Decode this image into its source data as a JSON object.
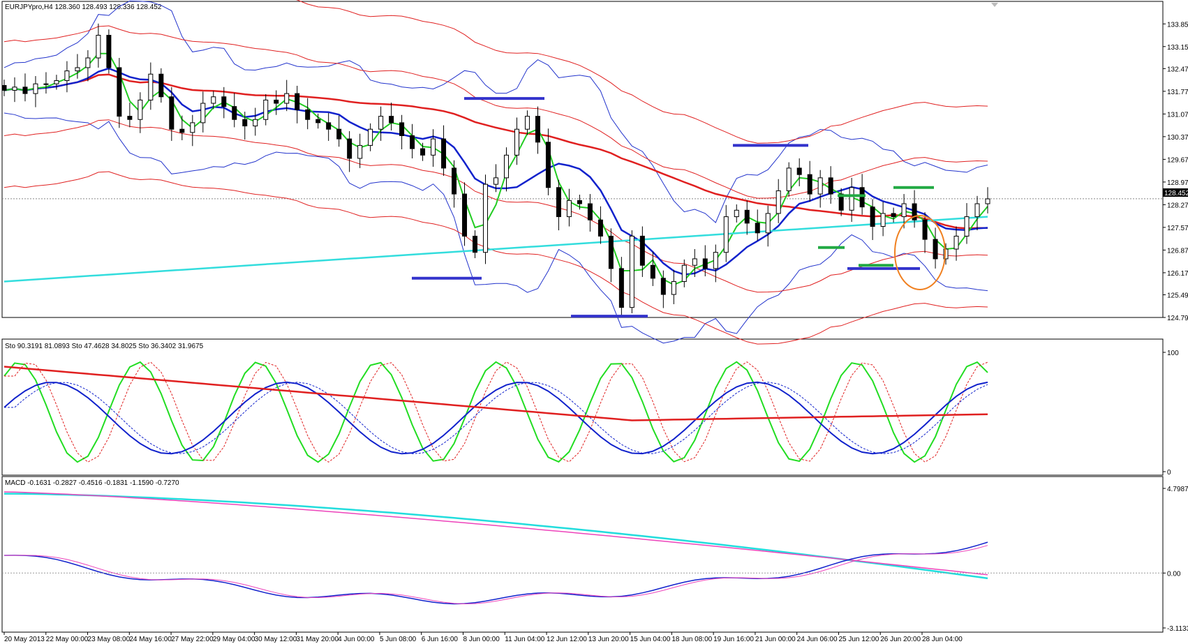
{
  "window_title": "",
  "chart_data": [
    {
      "type": "candlestick",
      "header": "EURJPYpro,H4  128.360 128.493 128.336 128.452",
      "symbol": "EURJPYpro",
      "timeframe": "H4",
      "ohlc_last": {
        "open": 128.36,
        "high": 128.493,
        "low": 128.336,
        "close": 128.452
      },
      "current_price_label": "128.452",
      "ylim": [
        124.79,
        134.2
      ],
      "y_ticks": [
        "133.850",
        "133.150",
        "132.470",
        "131.770",
        "131.070",
        "130.370",
        "129.670",
        "128.970",
        "128.270",
        "127.570",
        "126.870",
        "126.170",
        "125.490",
        "124.790"
      ],
      "y_tick_values": [
        133.85,
        133.15,
        132.47,
        131.77,
        131.07,
        130.37,
        129.67,
        128.97,
        128.27,
        127.57,
        126.87,
        126.17,
        125.49,
        124.79
      ],
      "candles_close": [
        131.8,
        131.9,
        131.7,
        132.0,
        132.0,
        132.1,
        132.4,
        132.5,
        132.8,
        133.5,
        132.5,
        131.0,
        130.9,
        131.5,
        132.3,
        131.6,
        130.6,
        130.5,
        130.8,
        131.4,
        131.6,
        131.3,
        130.9,
        130.7,
        130.9,
        131.5,
        131.4,
        131.7,
        131.2,
        130.9,
        130.8,
        130.6,
        130.3,
        129.7,
        130.1,
        130.6,
        131.0,
        130.8,
        130.4,
        130.0,
        129.8,
        130.3,
        129.4,
        128.6,
        127.3,
        126.8,
        128.9,
        129.1,
        129.8,
        130.6,
        131.0,
        130.2,
        128.8,
        127.9,
        128.4,
        128.3,
        127.8,
        127.3,
        126.3,
        125.1,
        127.3,
        126.4,
        126.0,
        125.5,
        125.9,
        126.4,
        126.6,
        126.3,
        126.8,
        127.9,
        128.1,
        127.7,
        127.4,
        128.0,
        128.7,
        129.4,
        129.2,
        128.6,
        129.1,
        128.6,
        128.1,
        128.8,
        128.2,
        127.6,
        128.0,
        127.9,
        128.3,
        127.8,
        127.2,
        126.6,
        126.9,
        127.3,
        127.9,
        128.3,
        128.45
      ],
      "annotations": [
        {
          "kind": "support-resistance",
          "color": "#3333cc",
          "price": 131.55
        },
        {
          "kind": "support-resistance",
          "color": "#3333cc",
          "price": 126.0
        },
        {
          "kind": "support-resistance",
          "color": "#3333cc",
          "price": 124.83
        },
        {
          "kind": "support-resistance",
          "color": "#3333cc",
          "price": 130.1
        },
        {
          "kind": "support-resistance",
          "color": "#3333cc",
          "price": 126.3
        },
        {
          "kind": "support-resistance",
          "color": "#22aa44",
          "price": 128.55
        },
        {
          "kind": "support-resistance",
          "color": "#22aa44",
          "price": 126.95
        },
        {
          "kind": "support-resistance",
          "color": "#22aa44",
          "price": 126.4
        },
        {
          "kind": "support-resistance",
          "color": "#22aa44",
          "price": 128.8
        },
        {
          "kind": "highlight-ellipse",
          "color": "#f08020"
        }
      ],
      "colors": {
        "bollinger_outer": "#e02020",
        "bollinger_inner": "#2233cc",
        "ma_long": "#e02020",
        "ma_mid": "#1122cc",
        "ma_fast": "#22cc22",
        "ma_trend": "#33dddd"
      }
    },
    {
      "type": "line",
      "header": "Sto 90.3191 81.0893  Sto 47.4628 34.8025  Sto 36.3402 31.9675",
      "ylim": [
        0,
        100
      ],
      "y_ticks": [
        "100",
        "0"
      ],
      "y_tick_values": [
        100,
        0
      ],
      "series_colors": [
        "#22dd22",
        "#1122cc",
        "#e02020"
      ]
    },
    {
      "type": "line",
      "header": "MACD -0.1631 -0.2827 -0.4516 -0.1831 -1.1590 -0.7270",
      "ylim": [
        -3.1133,
        4.7987
      ],
      "y_ticks": [
        "4.7987",
        "0.00",
        "-3.1133"
      ],
      "y_tick_values": [
        4.7987,
        0.0,
        -3.1133
      ],
      "series_colors": [
        "#22dddd",
        "#ee44bb",
        "#1122cc",
        "#ee44bb"
      ]
    }
  ],
  "time_axis": [
    "20 May 2013",
    "22 May 00:00",
    "23 May 08:00",
    "24 May 16:00",
    "27 May 22:00",
    "29 May 04:00",
    "30 May 12:00",
    "31 May 20:00",
    "4 Jun 00:00",
    "5 Jun 08:00",
    "6 Jun 16:00",
    "8 Jun 00:00",
    "11 Jun 04:00",
    "12 Jun 12:00",
    "13 Jun 20:00",
    "15 Jun 04:00",
    "18 Jun 08:00",
    "19 Jun 16:00",
    "21 Jun 00:00",
    "24 Jun 06:00",
    "25 Jun 12:00",
    "26 Jun 20:00",
    "28 Jun 04:00"
  ]
}
